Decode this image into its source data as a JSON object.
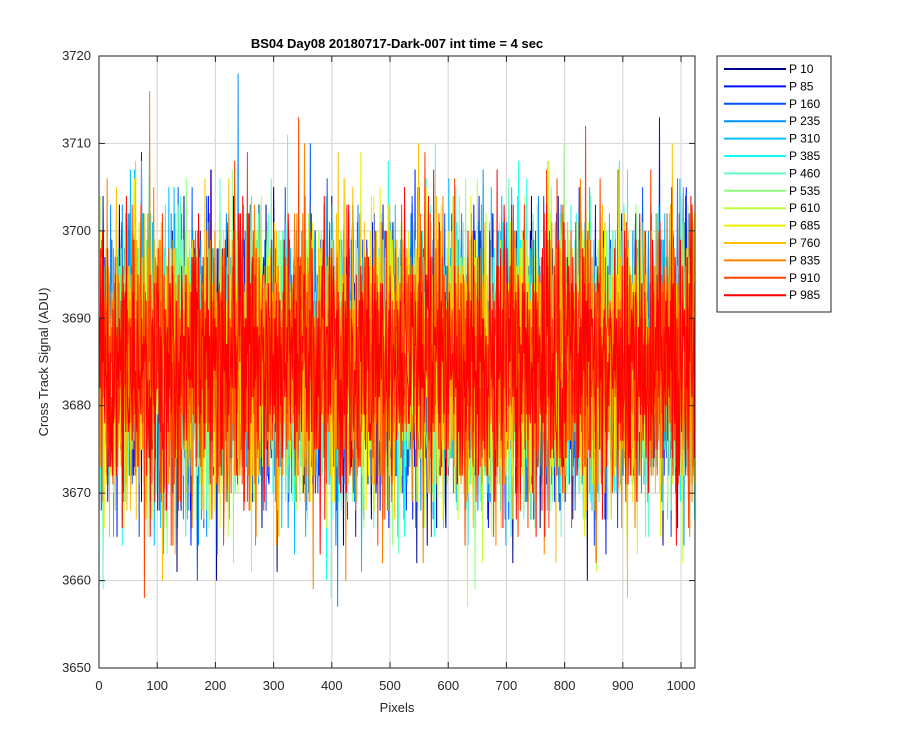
{
  "chart_data": {
    "type": "line",
    "title": "BS04 Day08 20180717-Dark-007 int time = 4 sec",
    "xlabel": "Pixels",
    "ylabel": "Cross Track Signal (ADU)",
    "xlim": [
      0,
      1024
    ],
    "ylim": [
      3650,
      3720
    ],
    "xticks": [
      0,
      100,
      200,
      300,
      400,
      500,
      600,
      700,
      800,
      900,
      1000
    ],
    "yticks": [
      3650,
      3660,
      3670,
      3680,
      3690,
      3700,
      3710,
      3720
    ],
    "grid": true,
    "legend_position": "outside-top-right",
    "noise_model": {
      "mean": 3685,
      "std": 8,
      "min_observed": 3655,
      "max_observed": 3719,
      "num_pixels": 1024
    },
    "series": [
      {
        "name": "P 10",
        "color": "#00008F"
      },
      {
        "name": "P 85",
        "color": "#0010FF"
      },
      {
        "name": "P 160",
        "color": "#0050FF"
      },
      {
        "name": "P 235",
        "color": "#0090FF"
      },
      {
        "name": "P 310",
        "color": "#00C0FF"
      },
      {
        "name": "P 385",
        "color": "#10FFEF"
      },
      {
        "name": "P 460",
        "color": "#60FFC0"
      },
      {
        "name": "P 535",
        "color": "#90FF80"
      },
      {
        "name": "P 610",
        "color": "#C0FF40"
      },
      {
        "name": "P 685",
        "color": "#F0F000"
      },
      {
        "name": "P 760",
        "color": "#FFC000"
      },
      {
        "name": "P 835",
        "color": "#FF8000"
      },
      {
        "name": "P 910",
        "color": "#FF4000"
      },
      {
        "name": "P 985",
        "color": "#FF0000"
      }
    ]
  }
}
